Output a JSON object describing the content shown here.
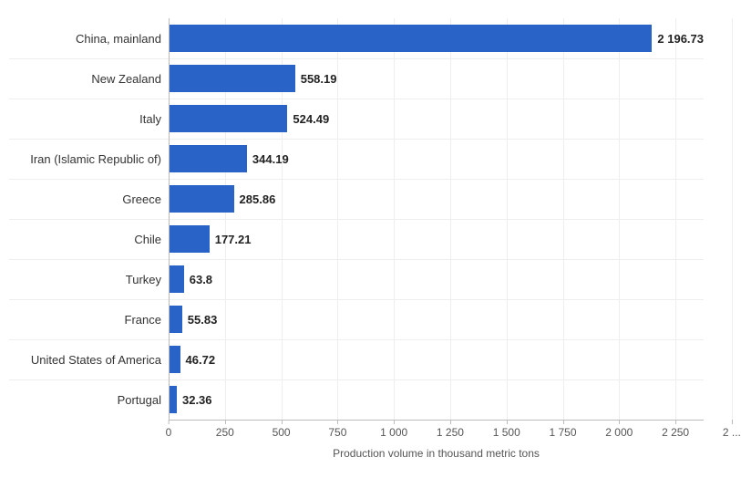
{
  "chart": {
    "type": "bar",
    "orientation": "horizontal",
    "xlabel": "Production volume in thousand metric tons",
    "xlim": [
      0,
      2375
    ],
    "xtick_step": 250,
    "xtick_labels": [
      "0",
      "250",
      "500",
      "750",
      "1 000",
      "1 250",
      "1 500",
      "1 750",
      "2 000",
      "2 250",
      "2 ..."
    ],
    "bar_color": "#2a63c7",
    "background_color": "#ffffff",
    "grid_color": "#eeeeee",
    "axis_color": "#bbbbbb",
    "label_font_size": 13,
    "value_font_size": 13,
    "value_font_weight": "bold",
    "tick_font_size": 12,
    "xlabel_font_size": 12,
    "text_color": "#333333",
    "categories": [
      {
        "name": "China, mainland",
        "value": 2196.73,
        "value_label": "2 196.73"
      },
      {
        "name": "New Zealand",
        "value": 558.19,
        "value_label": "558.19"
      },
      {
        "name": "Italy",
        "value": 524.49,
        "value_label": "524.49"
      },
      {
        "name": "Iran (Islamic Republic of)",
        "value": 344.19,
        "value_label": "344.19"
      },
      {
        "name": "Greece",
        "value": 285.86,
        "value_label": "285.86"
      },
      {
        "name": "Chile",
        "value": 177.21,
        "value_label": "177.21"
      },
      {
        "name": "Turkey",
        "value": 63.8,
        "value_label": "63.8"
      },
      {
        "name": "France",
        "value": 55.83,
        "value_label": "55.83"
      },
      {
        "name": "United States of America",
        "value": 46.72,
        "value_label": "46.72"
      },
      {
        "name": "Portugal",
        "value": 32.36,
        "value_label": "32.36"
      }
    ]
  }
}
